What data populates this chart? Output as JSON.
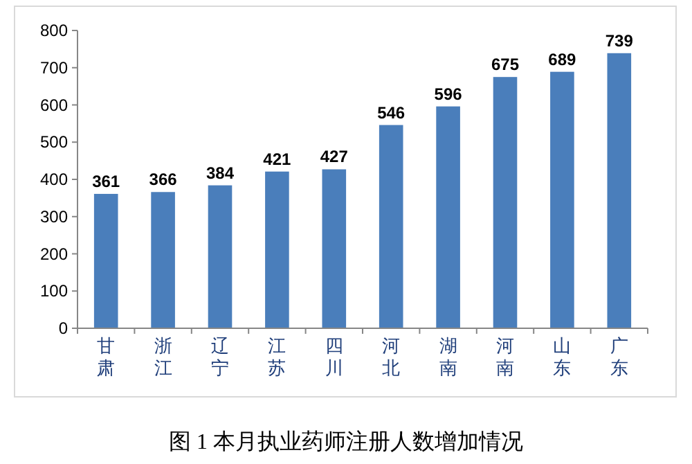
{
  "chart_data": {
    "type": "bar",
    "title": "图 1 本月执业药师注册人数增加情况",
    "categories": [
      "甘肃",
      "浙江",
      "辽宁",
      "江苏",
      "四川",
      "河北",
      "湖南",
      "河南",
      "山东",
      "广东"
    ],
    "values": [
      361,
      366,
      384,
      421,
      427,
      546,
      596,
      675,
      689,
      739
    ],
    "color": "#4a7ebb",
    "ylim": [
      0,
      800
    ],
    "yticks": [
      0,
      100,
      200,
      300,
      400,
      500,
      600,
      700,
      800
    ],
    "data_labels": true,
    "grid": false
  }
}
